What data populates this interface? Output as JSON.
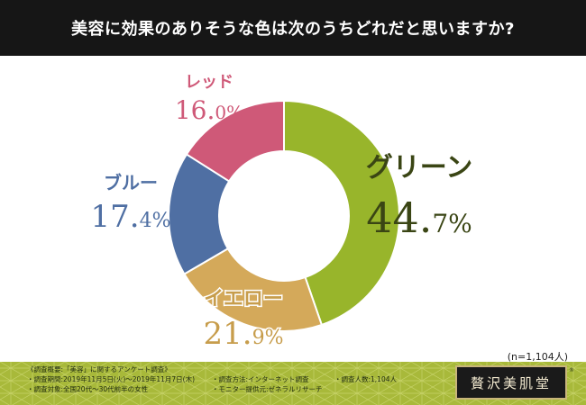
{
  "title": "美容に効果のありそうな色は次のうちどれだと思いますか?",
  "sample_size": "(n=1,104人)",
  "chart_data": {
    "type": "pie",
    "donut": true,
    "start_angle_deg": 0,
    "direction": "clockwise",
    "slices": [
      {
        "label": "グリーン",
        "value": 44.7,
        "value_text_main": "44.",
        "value_text_sub": "7%",
        "color": "#98b52b",
        "label_color": "#3a4514"
      },
      {
        "label": "イエロー",
        "value": 21.9,
        "value_text_main": "21.",
        "value_text_sub": "9%",
        "color": "#d4a95a",
        "label_color": "#c79d4c"
      },
      {
        "label": "ブルー",
        "value": 17.4,
        "value_text_main": "17.",
        "value_text_sub": "4%",
        "color": "#4f6fa3",
        "label_color": "#4f6fa3"
      },
      {
        "label": "レッド",
        "value": 16.0,
        "value_text_main": "16.",
        "value_text_sub": "0%",
        "color": "#cf5978",
        "label_color": "#cf5978"
      }
    ]
  },
  "footer": {
    "survey_summary": "《調査概要:「美容」に関するアンケート調査》",
    "survey_period": "・調査期間:2019年11月5日(火)～2019年11月7日(木)",
    "survey_method": "・調査方法:インターネット調査",
    "survey_count": "・調査人数:1,104人",
    "survey_target": "・調査対象:全国20代～30代前半の女性",
    "monitor_provider": "・モニター提供元:ゼネラルリサーチ",
    "logo_text": "贅沢美肌堂",
    "logo_mark": "®"
  },
  "colors": {
    "title_bg": "#161616",
    "footer_bg": "#a8b93a"
  }
}
